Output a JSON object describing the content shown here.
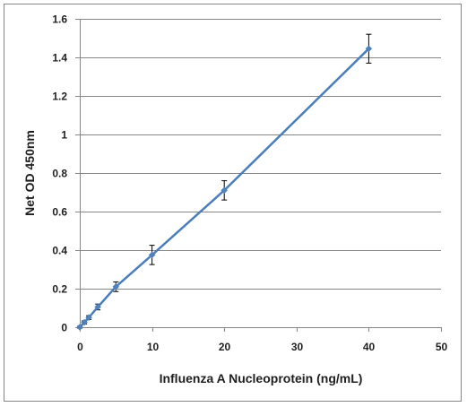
{
  "chart_data": {
    "type": "line",
    "title": "",
    "xlabel": "Influenza A Nucleoprotein (ng/mL)",
    "ylabel": "Net OD 450nm",
    "xlim": [
      0,
      50
    ],
    "ylim": [
      0,
      1.6
    ],
    "x_ticks": [
      0,
      10,
      20,
      30,
      40,
      50
    ],
    "y_ticks": [
      0,
      0.2,
      0.4,
      0.6,
      0.8,
      1,
      1.2,
      1.4,
      1.6
    ],
    "y_tick_labels": [
      "0",
      "0.2",
      "0.4",
      "0.6",
      "0.8",
      "1",
      "1.2",
      "1.4",
      "1.6"
    ],
    "grid": "horizontal",
    "legend": "none",
    "colors": {
      "series": "#4a7ebb",
      "marker": "#4f81bd",
      "error_bars": "#000000",
      "grid": "#868686",
      "axis": "#868686"
    },
    "series": [
      {
        "x": [
          0,
          0.625,
          1.25,
          2.5,
          5,
          10,
          20,
          40
        ],
        "y": [
          0.0,
          0.025,
          0.05,
          0.105,
          0.21,
          0.375,
          0.71,
          1.445
        ],
        "error": [
          0.005,
          0.008,
          0.01,
          0.015,
          0.025,
          0.05,
          0.05,
          0.075
        ]
      }
    ]
  }
}
